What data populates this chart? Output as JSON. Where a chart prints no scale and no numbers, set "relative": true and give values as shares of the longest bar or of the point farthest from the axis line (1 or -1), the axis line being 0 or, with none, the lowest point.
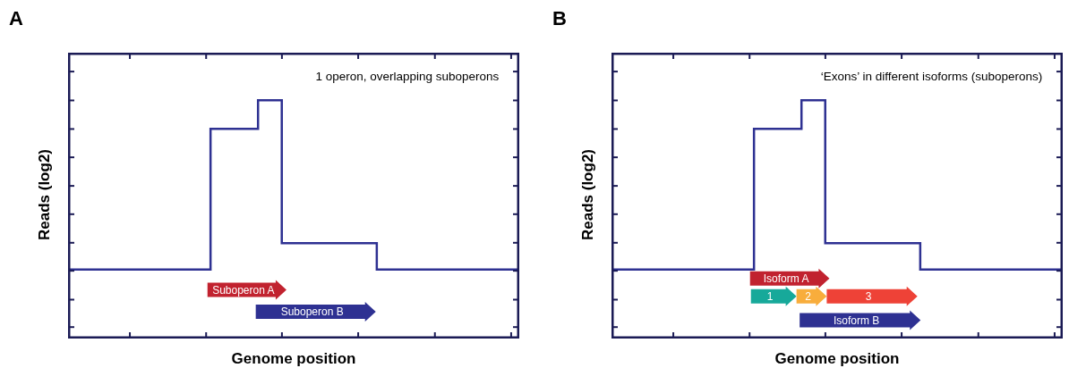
{
  "chart_data": [
    {
      "type": "step",
      "title": "A",
      "xlabel": "Genome position",
      "ylabel": "Reads (log2)",
      "relative": true,
      "color": "#2e3192",
      "categories": [
        null,
        null,
        null,
        null,
        null,
        null,
        null,
        null,
        null,
        null,
        null,
        null,
        null,
        null,
        null,
        null,
        null,
        null,
        null,
        null
      ],
      "values": [
        0.29,
        0.29,
        0.29,
        0.29,
        0.29,
        0.29,
        0.88,
        0.88,
        1,
        0.4,
        0.4,
        0.4,
        0.4,
        0.29,
        0.29,
        0.29,
        0.29,
        0.29,
        0.29,
        0.29
      ],
      "annotations": [
        "1 operon, overlapping suboperons",
        "Suboperon A",
        "Suboperon B"
      ]
    },
    {
      "type": "step",
      "title": "B",
      "xlabel": "Genome position",
      "ylabel": "Reads (log2)",
      "relative": true,
      "color": "#2e3192",
      "categories": [
        null,
        null,
        null,
        null,
        null,
        null,
        null,
        null,
        null,
        null,
        null,
        null,
        null,
        null,
        null,
        null,
        null,
        null,
        null,
        null
      ],
      "values": [
        0.29,
        0.29,
        0.29,
        0.29,
        0.29,
        0.29,
        0.88,
        0.88,
        1,
        0.4,
        0.4,
        0.4,
        0.4,
        0.29,
        0.29,
        0.29,
        0.29,
        0.29,
        0.29,
        0.29
      ],
      "annotations": [
        "‘Exons’ in different isoforms (suboperons)",
        "Isoform A",
        "1",
        "2",
        "3",
        "Isoform B"
      ]
    }
  ]
}
